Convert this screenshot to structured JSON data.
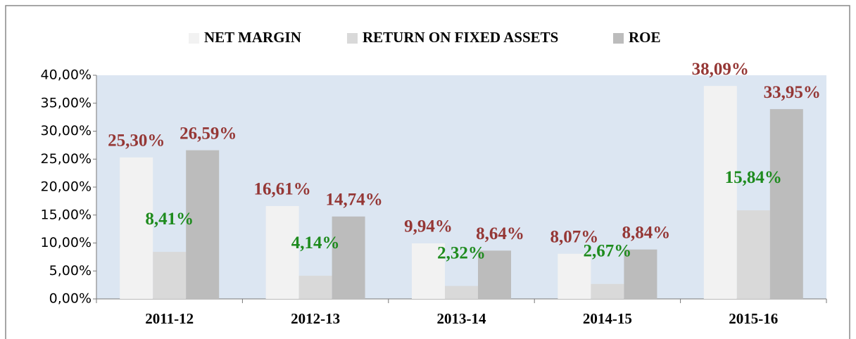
{
  "chart_data": {
    "type": "bar",
    "categories": [
      "2011-12",
      "2012-13",
      "2013-14",
      "2014-15",
      "2015-16"
    ],
    "series": [
      {
        "name": "NET MARGIN",
        "color": "#f2f2f2",
        "label_color": "#953735",
        "values": [
          25.3,
          16.61,
          9.94,
          8.07,
          38.09
        ],
        "value_labels": [
          "25,30%",
          "16,61%",
          "9,94%",
          "8,07%",
          "38,09%"
        ]
      },
      {
        "name": "RETURN ON FIXED ASSETS",
        "color": "#d9d9d9",
        "label_color": "#1e8b1e",
        "values": [
          8.41,
          4.14,
          2.32,
          2.67,
          15.84
        ],
        "value_labels": [
          "8,41%",
          "4,14%",
          "2,32%",
          "2,67%",
          "15,84%"
        ]
      },
      {
        "name": "ROE",
        "color": "#bcbcbc",
        "label_color": "#953735",
        "values": [
          26.59,
          14.74,
          8.64,
          8.84,
          33.95
        ],
        "value_labels": [
          "26,59%",
          "14,74%",
          "8,64%",
          "8,84%",
          "33,95%"
        ]
      }
    ],
    "ylim": [
      0,
      40
    ],
    "yticks": [
      {
        "value": 0,
        "label": "0,00%"
      },
      {
        "value": 5,
        "label": "5,00%"
      },
      {
        "value": 10,
        "label": "10,00%"
      },
      {
        "value": 15,
        "label": "15,00%"
      },
      {
        "value": 20,
        "label": "20,00%"
      },
      {
        "value": 25,
        "label": "25,00%"
      },
      {
        "value": 30,
        "label": "30,00%"
      },
      {
        "value": 35,
        "label": "35,00%"
      },
      {
        "value": 40,
        "label": "40,00%"
      }
    ],
    "grid": false,
    "plot_background": "#dce6f2",
    "legend": "top"
  }
}
